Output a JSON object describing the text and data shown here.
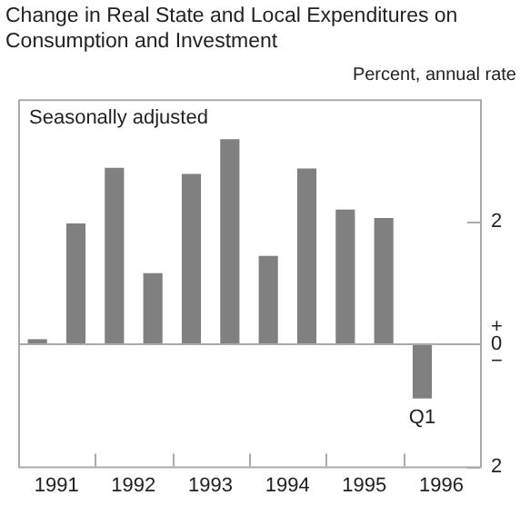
{
  "chart_data": {
    "type": "bar",
    "title": "Change in Real State and Local Expenditures on Consumption and Investment",
    "ylabel": "Percent, annual rate",
    "categories": [
      "1991",
      null,
      "1992",
      null,
      "1993",
      null,
      "1994",
      null,
      "1995",
      null,
      "1996",
      null
    ],
    "values": [
      0.08,
      1.97,
      2.88,
      1.16,
      2.78,
      3.35,
      1.44,
      2.87,
      2.2,
      2.06,
      -0.89,
      null
    ],
    "color": "#808080",
    "ylim": [
      -2,
      4
    ],
    "yticks": [
      {
        "value": -2,
        "label": "2"
      },
      {
        "value": 0,
        "label": "+\n0\n−"
      },
      2
    ],
    "legend": false,
    "annotations": [
      "Seasonally adjusted",
      "Q1"
    ]
  }
}
